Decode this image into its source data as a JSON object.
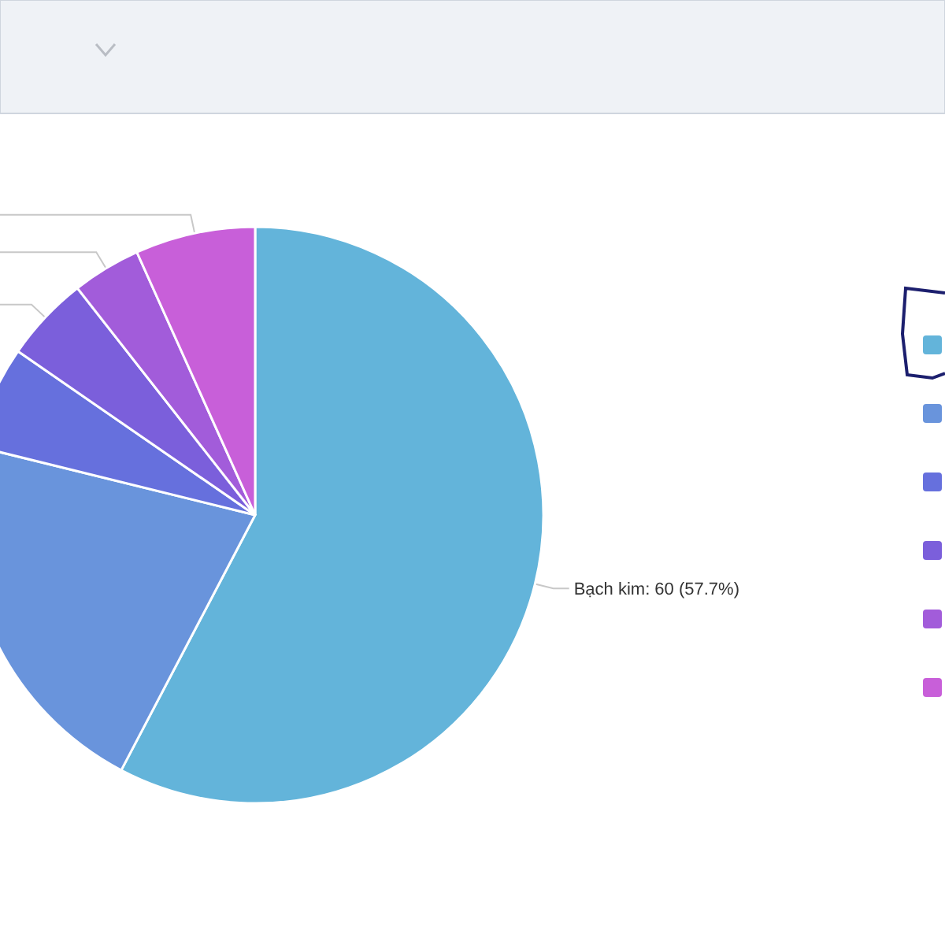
{
  "chart_data": {
    "type": "pie",
    "categories": [
      null,
      null,
      null,
      null,
      null,
      null
    ],
    "values": [
      60,
      22,
      6,
      5,
      4,
      7
    ],
    "colors": [
      "#63b4da",
      "#6994dc",
      "#6670dd",
      "#7b5fdb",
      "#a25cda",
      "#c85fd9"
    ],
    "value_labels": [
      "Bạch kim: 60 (57.7%)",
      null,
      null,
      null,
      null,
      null
    ]
  }
}
